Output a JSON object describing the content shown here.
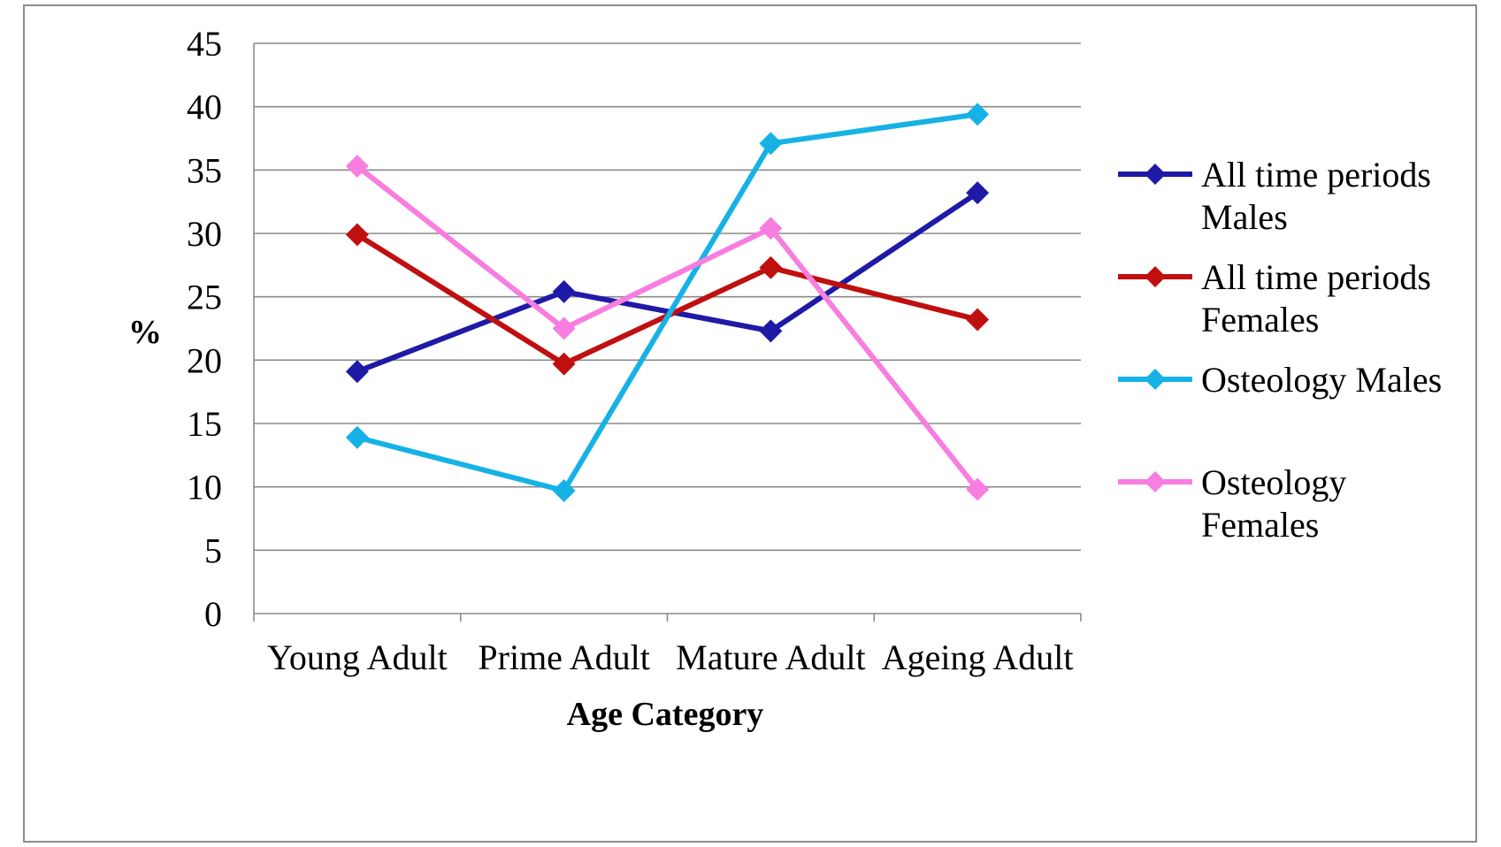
{
  "chart_data": {
    "type": "line",
    "categories": [
      "Young Adult",
      "Prime Adult",
      "Mature Adult",
      "Ageing Adult"
    ],
    "xlabel": "Age Category",
    "ylabel": "%",
    "ylim": [
      0,
      45
    ],
    "yticks": [
      "0",
      "5",
      "10",
      "15",
      "20",
      "25",
      "30",
      "35",
      "40",
      "45"
    ],
    "grid": true,
    "legend_position": "right",
    "series": [
      {
        "name": "All time periods Males",
        "legend_lines": [
          "All time periods",
          "Males"
        ],
        "color": "#1f1aa6",
        "values": [
          19.1,
          25.4,
          22.3,
          33.2
        ]
      },
      {
        "name": "All time periods Females",
        "legend_lines": [
          "All time periods",
          "Females"
        ],
        "color": "#c00f0f",
        "values": [
          29.9,
          19.7,
          27.3,
          23.2
        ]
      },
      {
        "name": "Osteology Males",
        "legend_lines": [
          "Osteology Males"
        ],
        "color": "#16b2e6",
        "values": [
          13.9,
          9.7,
          37.1,
          39.4
        ]
      },
      {
        "name": "Osteology Females",
        "legend_lines": [
          "Osteology",
          "Females"
        ],
        "color": "#f77ee0",
        "values": [
          35.3,
          22.5,
          30.4,
          9.8
        ]
      }
    ]
  }
}
